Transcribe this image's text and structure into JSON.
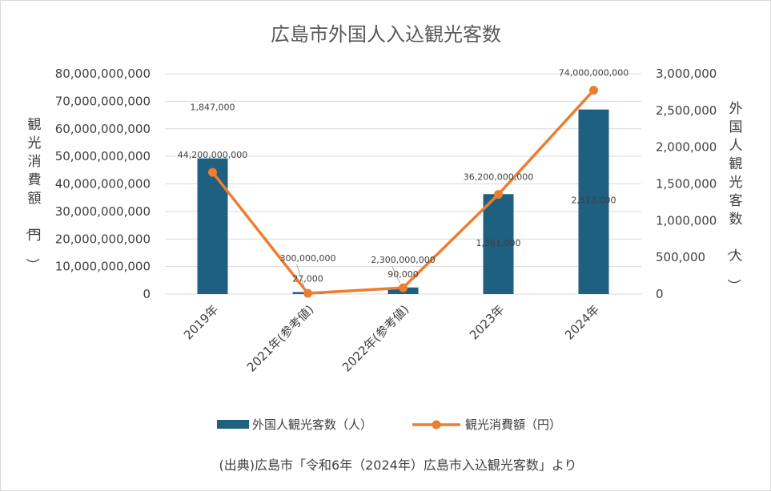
{
  "chart_data": {
    "type": "bar+line",
    "title": "広島市外国人入込観光客数",
    "categories": [
      "2019年",
      "2021年(参考値)",
      "2022年(参考値)",
      "2023年",
      "2024年"
    ],
    "series": [
      {
        "name": "外国人観光客数（人）",
        "type": "bar",
        "axis": "right",
        "color": "#1f5f7f",
        "values": [
          1847000,
          27000,
          90000,
          1361000,
          2513000
        ],
        "labels": [
          "1,847,000",
          "27,000",
          "90,000",
          "1,361,000",
          "2,513,000"
        ]
      },
      {
        "name": "観光消費額（円）",
        "type": "line",
        "axis": "left",
        "color": "#ed7d31",
        "values": [
          44200000000,
          300000000,
          2300000000,
          36200000000,
          74000000000
        ],
        "labels": [
          "44,200,000,000",
          "300,000,000",
          "2,300,000,000",
          "36,200,000,000",
          "74,000,000,000"
        ]
      }
    ],
    "y_left": {
      "label": "観光消費額（円）",
      "lim": [
        0,
        80000000000
      ],
      "ticks": [
        "0",
        "10,000,000,000",
        "20,000,000,000",
        "30,000,000,000",
        "40,000,000,000",
        "50,000,000,000",
        "60,000,000,000",
        "70,000,000,000",
        "80,000,000,000"
      ]
    },
    "y_right": {
      "label": "外国人観光客数（人）",
      "lim": [
        0,
        3000000
      ],
      "ticks": [
        "0",
        "500,000",
        "1,000,000",
        "1,500,000",
        "2,000,000",
        "2,500,000",
        "3,000,000"
      ]
    },
    "grid": true,
    "legend_position": "bottom"
  },
  "source_note": "(出典)広島市「令和6年（2024年）広島市入込観光客数」より"
}
